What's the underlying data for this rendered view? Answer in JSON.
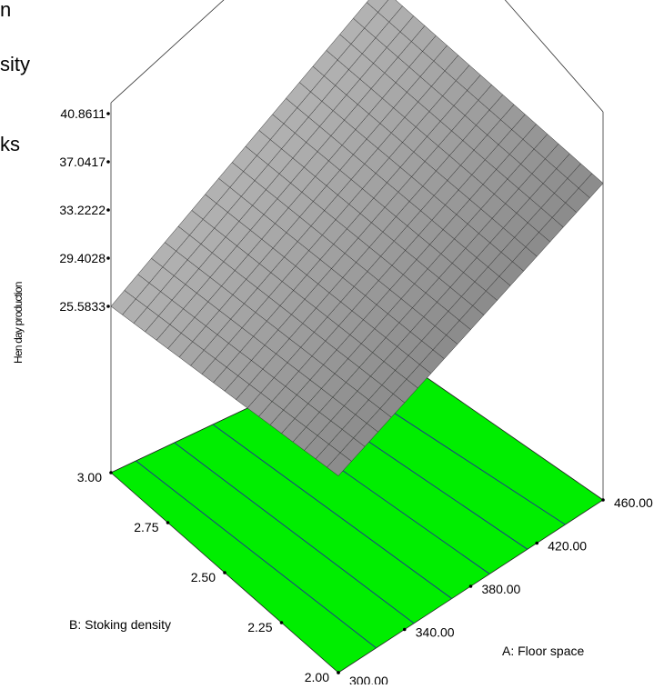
{
  "header_text": [
    "n",
    "sity",
    "ks"
  ],
  "chart_data": {
    "type": "surface",
    "xlabel": "A: Floor space",
    "ylabel": "B: Stoking density",
    "zlabel": "Hen day production",
    "x_ticks": [
      "300.00",
      "340.00",
      "380.00",
      "420.00",
      "460.00"
    ],
    "y_ticks": [
      "2.00",
      "2.25",
      "2.50",
      "2.75",
      "3.00"
    ],
    "z_ticks": [
      "25.5833",
      "29.4028",
      "33.2222",
      "37.0417",
      "40.8611"
    ],
    "xlim": [
      300,
      460
    ],
    "ylim": [
      2.0,
      3.0
    ],
    "zlim": [
      25.5833,
      40.8611
    ],
    "surface_corners": [
      {
        "x": 300,
        "y": 3.0,
        "z": 25.5833
      },
      {
        "x": 300,
        "y": 2.0,
        "z": 28.0
      },
      {
        "x": 460,
        "y": 2.0,
        "z": 37.5
      },
      {
        "x": 460,
        "y": 3.0,
        "z": 40.8611
      }
    ],
    "contour_levels": 6,
    "colors": {
      "floor": "#00ee00",
      "contour": "#1e3a8a",
      "surface": "#8c8c8c",
      "grid": "#333333"
    }
  }
}
